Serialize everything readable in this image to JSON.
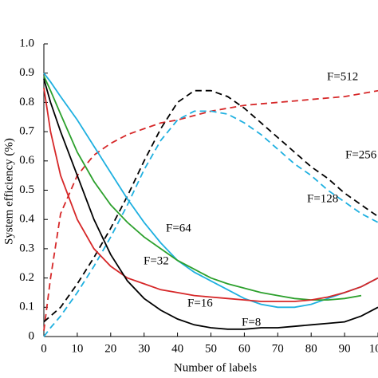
{
  "chart_data": {
    "type": "line",
    "xlabel": "Number of labels",
    "ylabel": "System efficiency (%)",
    "x": [
      0,
      2,
      5,
      10,
      15,
      20,
      25,
      30,
      35,
      40,
      45,
      50,
      55,
      60,
      65,
      70,
      75,
      80,
      85,
      90,
      95,
      100
    ],
    "xlim": [
      0,
      100
    ],
    "xticks": [
      0,
      10,
      20,
      30,
      40,
      50,
      60,
      70,
      80,
      90,
      100
    ],
    "ylim": [
      0,
      1
    ],
    "yticks": [
      0,
      0.1,
      0.2,
      0.3,
      0.4,
      0.5,
      0.6,
      0.7,
      0.8,
      0.9,
      {
        "value": 1,
        "label": "1.0"
      }
    ],
    "series": [
      {
        "name": "F=512",
        "color": "#d62728",
        "dashed": true,
        "values": [
          0.02,
          0.2,
          0.42,
          0.55,
          0.62,
          0.66,
          0.69,
          0.71,
          0.73,
          0.74,
          0.755,
          0.77,
          0.78,
          0.79,
          0.795,
          0.8,
          0.805,
          0.81,
          0.815,
          0.82,
          0.83,
          0.84
        ]
      },
      {
        "name": "F=256",
        "color": "#000000",
        "dashed": true,
        "values": [
          0.05,
          0.07,
          0.1,
          0.18,
          0.27,
          0.37,
          0.48,
          0.6,
          0.71,
          0.8,
          0.84,
          0.84,
          0.82,
          0.78,
          0.73,
          0.68,
          0.63,
          0.58,
          0.54,
          0.49,
          0.45,
          0.41
        ]
      },
      {
        "name": "F=128",
        "color": "#1fb0e0",
        "dashed": true,
        "values": [
          0.0,
          0.03,
          0.07,
          0.15,
          0.24,
          0.34,
          0.45,
          0.57,
          0.67,
          0.74,
          0.77,
          0.77,
          0.76,
          0.73,
          0.69,
          0.64,
          0.59,
          0.55,
          0.5,
          0.46,
          0.42,
          0.39
        ]
      },
      {
        "name": "F=64",
        "color": "#1fb0e0",
        "dashed": false,
        "values": [
          0.9,
          0.87,
          0.82,
          0.74,
          0.65,
          0.56,
          0.47,
          0.39,
          0.32,
          0.26,
          0.22,
          0.19,
          0.16,
          0.13,
          0.11,
          0.1,
          0.1,
          0.11,
          0.13,
          0.15,
          0.17,
          0.2
        ]
      },
      {
        "name": "F=32",
        "color": "#2ca02c",
        "dashed": false,
        "values": [
          0.89,
          0.84,
          0.76,
          0.63,
          0.53,
          0.45,
          0.39,
          0.34,
          0.3,
          0.26,
          0.23,
          0.2,
          0.18,
          0.165,
          0.15,
          0.14,
          0.13,
          0.125,
          0.125,
          0.13,
          0.14,
          null
        ]
      },
      {
        "name": "F=16",
        "color": "#d62728",
        "dashed": false,
        "values": [
          0.85,
          0.7,
          0.55,
          0.4,
          0.3,
          0.24,
          0.2,
          0.18,
          0.16,
          0.15,
          0.14,
          0.135,
          0.13,
          0.125,
          0.12,
          0.12,
          0.12,
          0.125,
          0.135,
          0.15,
          0.17,
          0.2
        ]
      },
      {
        "name": "F=8",
        "color": "#000000",
        "dashed": false,
        "values": [
          0.88,
          0.8,
          0.7,
          0.55,
          0.4,
          0.28,
          0.19,
          0.13,
          0.09,
          0.06,
          0.04,
          0.03,
          0.025,
          0.025,
          0.03,
          0.03,
          0.035,
          0.04,
          0.045,
          0.05,
          0.07,
          0.1
        ]
      }
    ]
  }
}
